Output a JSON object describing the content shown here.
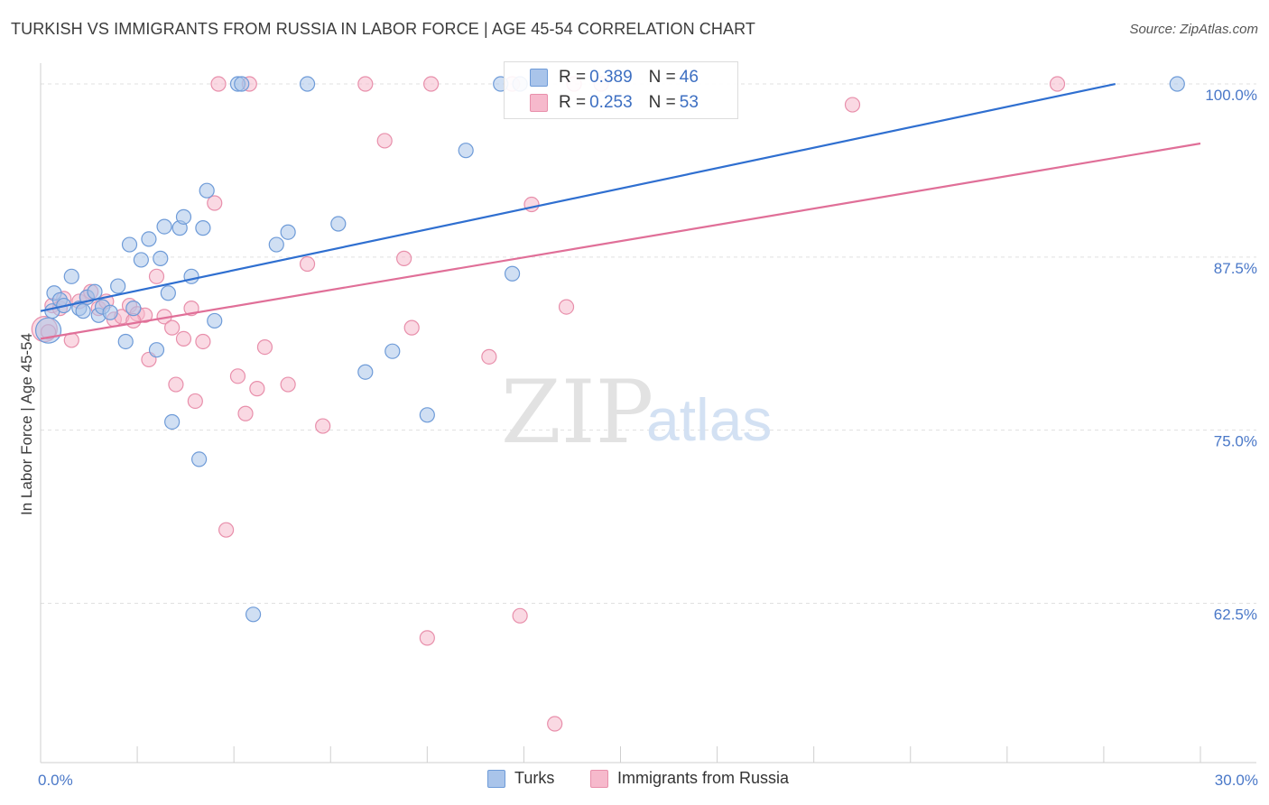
{
  "title": "TURKISH VS IMMIGRANTS FROM RUSSIA IN LABOR FORCE | AGE 45-54 CORRELATION CHART",
  "source": "Source: ZipAtlas.com",
  "watermark": {
    "zip": "ZIP",
    "atlas": "atlas"
  },
  "legend_top": {
    "turks": {
      "r_label": "R = ",
      "r_value": "0.389",
      "n_label": "N = ",
      "n_value": "46"
    },
    "russia": {
      "r_label": "R = ",
      "r_value": "0.253",
      "n_label": "N = ",
      "n_value": "53"
    }
  },
  "legend_bottom": {
    "turks": "Turks",
    "russia": "Immigrants from Russia"
  },
  "colors": {
    "turks_fill": "#a9c4ea",
    "turks_stroke": "#6e9bd8",
    "turks_line": "#2f6fd0",
    "russia_fill": "#f6b9cc",
    "russia_stroke": "#e88fab",
    "russia_line": "#e06f98",
    "tick_label": "#4a78c8",
    "grid": "#e0e0e0"
  },
  "chart_data": {
    "type": "scatter",
    "title": "TURKISH VS IMMIGRANTS FROM RUSSIA IN LABOR FORCE | AGE 45-54 CORRELATION CHART",
    "xlabel": "",
    "ylabel": "In Labor Force | Age 45-54",
    "xlim": [
      0,
      30
    ],
    "ylim": [
      51,
      101.5
    ],
    "x_tick_labels": [
      {
        "value": 0,
        "label": "0.0%"
      },
      {
        "value": 30,
        "label": "30.0%"
      }
    ],
    "y_tick_labels": [
      {
        "value": 100,
        "label": "100.0%"
      },
      {
        "value": 87.5,
        "label": "87.5%"
      },
      {
        "value": 75,
        "label": "75.0%"
      },
      {
        "value": 62.5,
        "label": "62.5%"
      }
    ],
    "series": [
      {
        "name": "Turks",
        "r": 0.389,
        "n": 46,
        "trend": {
          "x": [
            0,
            27.8
          ],
          "y": [
            83.6,
            100.0
          ]
        },
        "points": [
          [
            0.2,
            82.2
          ],
          [
            0.3,
            83.6
          ],
          [
            0.35,
            84.9
          ],
          [
            0.5,
            84.4
          ],
          [
            0.6,
            84.0
          ],
          [
            0.8,
            86.1
          ],
          [
            1.0,
            83.8
          ],
          [
            1.1,
            83.6
          ],
          [
            1.2,
            84.6
          ],
          [
            1.4,
            85.0
          ],
          [
            1.5,
            83.3
          ],
          [
            1.6,
            83.9
          ],
          [
            1.8,
            83.5
          ],
          [
            2.0,
            85.4
          ],
          [
            2.2,
            81.4
          ],
          [
            2.3,
            88.4
          ],
          [
            2.4,
            83.8
          ],
          [
            2.6,
            87.3
          ],
          [
            2.8,
            88.8
          ],
          [
            3.0,
            80.8
          ],
          [
            3.1,
            87.4
          ],
          [
            3.2,
            89.7
          ],
          [
            3.3,
            84.9
          ],
          [
            3.4,
            75.6
          ],
          [
            3.6,
            89.6
          ],
          [
            3.7,
            90.4
          ],
          [
            3.9,
            86.1
          ],
          [
            4.1,
            72.9
          ],
          [
            4.2,
            89.6
          ],
          [
            4.3,
            92.3
          ],
          [
            4.5,
            82.9
          ],
          [
            5.1,
            100.0
          ],
          [
            5.2,
            100.0
          ],
          [
            5.5,
            61.7
          ],
          [
            6.1,
            88.4
          ],
          [
            6.4,
            89.3
          ],
          [
            6.9,
            100.0
          ],
          [
            7.7,
            89.9
          ],
          [
            8.4,
            79.2
          ],
          [
            9.1,
            80.7
          ],
          [
            10.0,
            76.1
          ],
          [
            11.0,
            95.2
          ],
          [
            11.9,
            100.0
          ],
          [
            12.2,
            86.3
          ],
          [
            12.4,
            100.0
          ],
          [
            29.4,
            100.0
          ]
        ]
      },
      {
        "name": "Immigrants from Russia",
        "r": 0.253,
        "n": 53,
        "trend": {
          "x": [
            0,
            30
          ],
          "y": [
            81.6,
            95.7
          ]
        },
        "points": [
          [
            0.1,
            82.3
          ],
          [
            0.3,
            84.0
          ],
          [
            0.5,
            83.8
          ],
          [
            0.6,
            84.5
          ],
          [
            0.8,
            81.5
          ],
          [
            1.0,
            84.3
          ],
          [
            1.2,
            84.6
          ],
          [
            1.3,
            85.0
          ],
          [
            1.5,
            83.8
          ],
          [
            1.7,
            84.3
          ],
          [
            1.9,
            83.0
          ],
          [
            2.1,
            83.2
          ],
          [
            2.3,
            84.0
          ],
          [
            2.5,
            83.4
          ],
          [
            2.7,
            83.3
          ],
          [
            2.8,
            80.1
          ],
          [
            3.0,
            86.1
          ],
          [
            3.2,
            83.2
          ],
          [
            3.4,
            82.4
          ],
          [
            3.5,
            78.3
          ],
          [
            3.7,
            81.6
          ],
          [
            3.9,
            83.8
          ],
          [
            4.0,
            77.1
          ],
          [
            4.2,
            81.4
          ],
          [
            4.5,
            91.4
          ],
          [
            4.6,
            100.0
          ],
          [
            4.8,
            67.8
          ],
          [
            5.1,
            78.9
          ],
          [
            5.3,
            76.2
          ],
          [
            5.4,
            100.0
          ],
          [
            5.6,
            78.0
          ],
          [
            5.8,
            81.0
          ],
          [
            6.4,
            78.3
          ],
          [
            6.9,
            87.0
          ],
          [
            7.3,
            75.3
          ],
          [
            8.4,
            100.0
          ],
          [
            8.9,
            95.9
          ],
          [
            9.4,
            87.4
          ],
          [
            9.6,
            82.4
          ],
          [
            10.0,
            60.0
          ],
          [
            10.1,
            100.0
          ],
          [
            11.6,
            80.3
          ],
          [
            12.2,
            100.0
          ],
          [
            12.4,
            61.6
          ],
          [
            12.7,
            91.3
          ],
          [
            13.3,
            53.8
          ],
          [
            13.6,
            83.9
          ],
          [
            13.8,
            100.0
          ],
          [
            14.5,
            100.0
          ],
          [
            21.0,
            98.5
          ],
          [
            26.3,
            100.0
          ],
          [
            0.2,
            82.1
          ],
          [
            2.4,
            82.9
          ]
        ]
      }
    ]
  }
}
